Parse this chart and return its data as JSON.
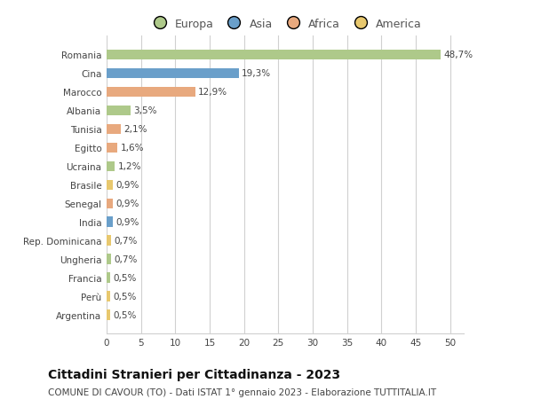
{
  "countries": [
    "Romania",
    "Cina",
    "Marocco",
    "Albania",
    "Tunisia",
    "Egitto",
    "Ucraina",
    "Brasile",
    "Senegal",
    "India",
    "Rep. Dominicana",
    "Ungheria",
    "Francia",
    "Perù",
    "Argentina"
  ],
  "values": [
    48.7,
    19.3,
    12.9,
    3.5,
    2.1,
    1.6,
    1.2,
    0.9,
    0.9,
    0.9,
    0.7,
    0.7,
    0.5,
    0.5,
    0.5
  ],
  "labels": [
    "48,7%",
    "19,3%",
    "12,9%",
    "3,5%",
    "2,1%",
    "1,6%",
    "1,2%",
    "0,9%",
    "0,9%",
    "0,9%",
    "0,7%",
    "0,7%",
    "0,5%",
    "0,5%",
    "0,5%"
  ],
  "colors": [
    "#aec98a",
    "#6a9fca",
    "#e8a97e",
    "#aec98a",
    "#e8a97e",
    "#e8a97e",
    "#aec98a",
    "#e8c86e",
    "#e8a97e",
    "#6a9fca",
    "#e8c86e",
    "#aec98a",
    "#aec98a",
    "#e8c86e",
    "#e8c86e"
  ],
  "legend_labels": [
    "Europa",
    "Asia",
    "Africa",
    "America"
  ],
  "legend_colors": [
    "#aec98a",
    "#6a9fca",
    "#e8a97e",
    "#e8c86e"
  ],
  "xlim": [
    0,
    52
  ],
  "xticks": [
    0,
    5,
    10,
    15,
    20,
    25,
    30,
    35,
    40,
    45,
    50
  ],
  "title": "Cittadini Stranieri per Cittadinanza - 2023",
  "subtitle": "COMUNE DI CAVOUR (TO) - Dati ISTAT 1° gennaio 2023 - Elaborazione TUTTITALIA.IT",
  "bg_color": "#ffffff",
  "grid_color": "#d0d0d0",
  "bar_height": 0.55,
  "label_fontsize": 7.5,
  "tick_fontsize": 7.5,
  "title_fontsize": 10,
  "subtitle_fontsize": 7.5,
  "legend_fontsize": 9
}
